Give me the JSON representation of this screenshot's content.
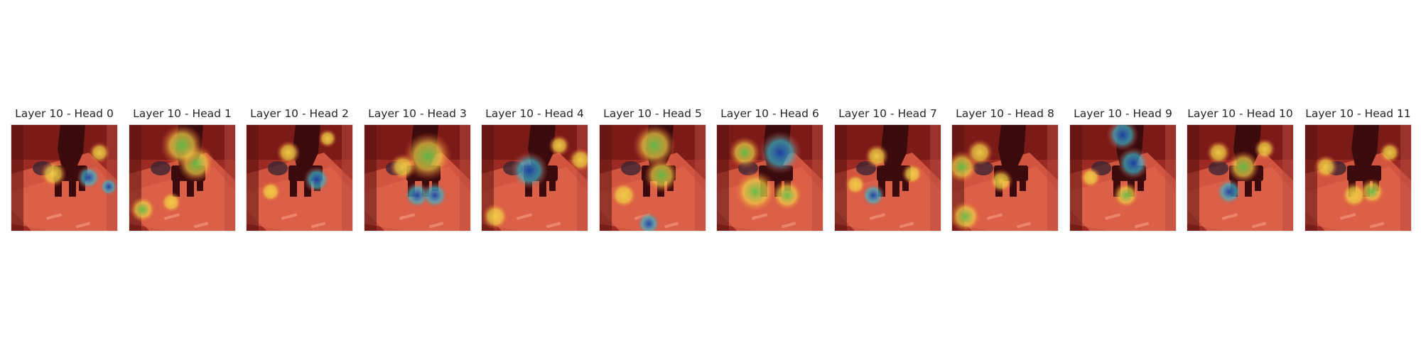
{
  "figure": {
    "panels": [
      {
        "title": "Layer 10 - Head 0"
      },
      {
        "title": "Layer 10 - Head 1"
      },
      {
        "title": "Layer 10 - Head 2"
      },
      {
        "title": "Layer 10 - Head 3"
      },
      {
        "title": "Layer 10 - Head 4"
      },
      {
        "title": "Layer 10 - Head 5"
      },
      {
        "title": "Layer 10 - Head 6"
      },
      {
        "title": "Layer 10 - Head 7"
      },
      {
        "title": "Layer 10 - Head 8"
      },
      {
        "title": "Layer 10 - Head 9"
      },
      {
        "title": "Layer 10 - Head 10"
      },
      {
        "title": "Layer 10 - Head 11"
      }
    ]
  },
  "colors": {
    "background": "#ffffff",
    "title_text": "#262626",
    "overlay_red": "#d8432f",
    "scene_dark": "#3a0a0c",
    "hot_yellow": "#f4d046",
    "hot_green": "#5fbf4a",
    "hot_cyan": "#3fb6c9",
    "hot_blue": "#1d3fa8"
  }
}
